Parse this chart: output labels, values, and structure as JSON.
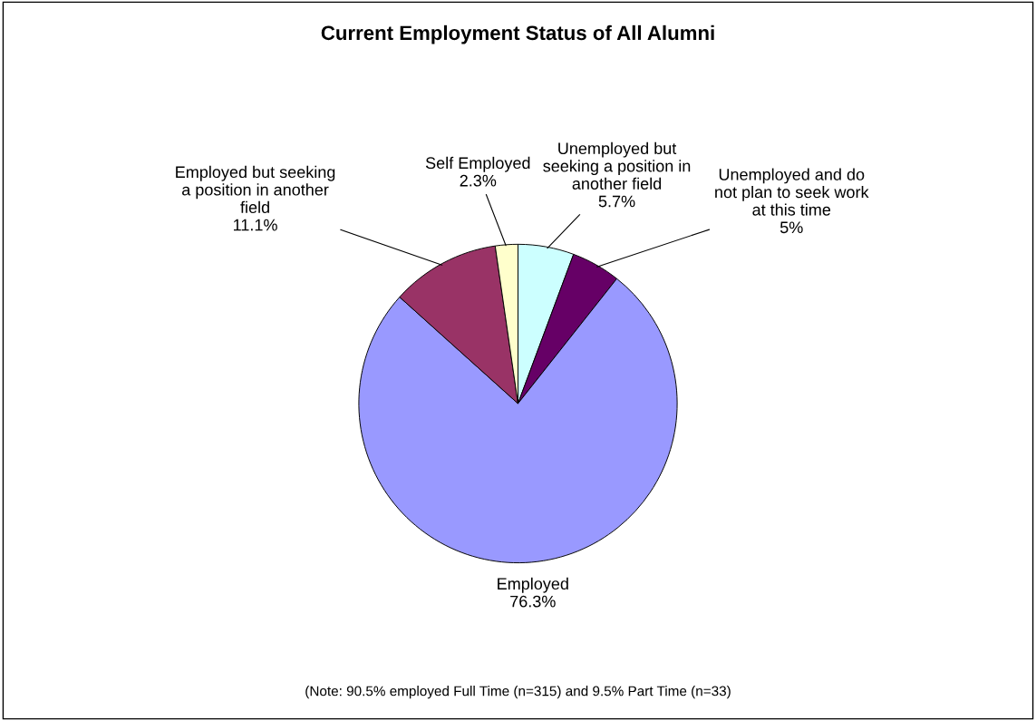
{
  "chart_data": {
    "type": "pie",
    "title": "Current Employment Status of All Alumni",
    "categories": [
      "Unemployed but\nseeking a position in\nanother field",
      "Unemployed and do\nnot plan to seek work\nat this time",
      "Employed",
      "Employed but seeking\na position in another\nfield",
      "Self Employed"
    ],
    "values": [
      5.7,
      5,
      76.3,
      11.1,
      2.3
    ],
    "value_labels": [
      "5.7%",
      "5%",
      "76.3%",
      "11.1%",
      "2.3%"
    ],
    "colors": [
      "#ccffff",
      "#660066",
      "#9999ff",
      "#993366",
      "#ffffcc"
    ],
    "annotations": [
      "(Note: 90.5% employed Full Time (n=315) and 9.5% Part Time (n=33)"
    ]
  }
}
